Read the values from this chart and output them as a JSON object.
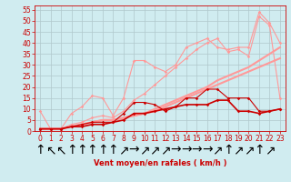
{
  "xlabel": "Vent moyen/en rafales ( km/h )",
  "background_color": "#d0ecf0",
  "grid_color": "#b0c8cc",
  "xlim": [
    -0.5,
    23.5
  ],
  "ylim": [
    0,
    57
  ],
  "yticks": [
    0,
    5,
    10,
    15,
    20,
    25,
    30,
    35,
    40,
    45,
    50,
    55
  ],
  "xticks": [
    0,
    1,
    2,
    3,
    4,
    5,
    6,
    7,
    8,
    9,
    10,
    11,
    12,
    13,
    14,
    15,
    16,
    17,
    18,
    19,
    20,
    21,
    22,
    23
  ],
  "series": [
    {
      "x": [
        0,
        1,
        2,
        3,
        4,
        5,
        6,
        7,
        8,
        9,
        10,
        11,
        12,
        13,
        14,
        15,
        16,
        17,
        18,
        19,
        20,
        21,
        22,
        23
      ],
      "y": [
        1,
        1,
        1,
        2,
        2,
        3,
        3,
        4,
        5,
        8,
        8,
        9,
        10,
        11,
        12,
        12,
        12,
        14,
        14,
        9,
        9,
        8,
        9,
        10
      ],
      "color": "#cc0000",
      "lw": 1.2,
      "marker": "D",
      "ms": 1.8,
      "zorder": 5
    },
    {
      "x": [
        0,
        1,
        2,
        3,
        4,
        5,
        6,
        7,
        8,
        9,
        10,
        11,
        12,
        13,
        14,
        15,
        16,
        17,
        18,
        19,
        20,
        21,
        22,
        23
      ],
      "y": [
        1,
        1,
        1,
        2,
        3,
        4,
        4,
        4,
        8,
        13,
        13,
        12,
        9,
        11,
        15,
        15,
        19,
        19,
        15,
        15,
        15,
        9,
        9,
        10
      ],
      "color": "#cc0000",
      "lw": 0.8,
      "marker": "D",
      "ms": 1.8,
      "zorder": 4
    },
    {
      "x": [
        0,
        1,
        2,
        3,
        4,
        5,
        6,
        7,
        8,
        9,
        10,
        11,
        12,
        13,
        14,
        15,
        16,
        17,
        18,
        19,
        20,
        21,
        22,
        23
      ],
      "y": [
        9,
        1,
        1,
        8,
        11,
        16,
        15,
        7,
        15,
        32,
        32,
        29,
        27,
        30,
        38,
        40,
        42,
        38,
        37,
        38,
        38,
        54,
        49,
        40
      ],
      "color": "#ff9999",
      "lw": 0.8,
      "marker": "D",
      "ms": 1.8,
      "zorder": 3
    },
    {
      "x": [
        0,
        1,
        2,
        3,
        4,
        5,
        6,
        7,
        8,
        9,
        10,
        11,
        12,
        13,
        14,
        15,
        16,
        17,
        18,
        19,
        20,
        21,
        22,
        23
      ],
      "y": [
        1,
        1,
        1,
        2,
        3,
        4,
        5,
        5,
        6,
        7,
        8,
        9,
        11,
        13,
        15,
        17,
        19,
        21,
        23,
        25,
        27,
        29,
        31,
        33
      ],
      "color": "#ff9999",
      "lw": 1.5,
      "marker": null,
      "ms": 0,
      "zorder": 2
    },
    {
      "x": [
        0,
        1,
        2,
        3,
        4,
        5,
        6,
        7,
        8,
        9,
        10,
        11,
        12,
        13,
        14,
        15,
        16,
        17,
        18,
        19,
        20,
        21,
        22,
        23
      ],
      "y": [
        1,
        1,
        1,
        3,
        4,
        6,
        7,
        6,
        9,
        14,
        17,
        21,
        25,
        29,
        33,
        37,
        40,
        42,
        36,
        37,
        34,
        52,
        48,
        15
      ],
      "color": "#ff9999",
      "lw": 0.8,
      "marker": "D",
      "ms": 1.8,
      "zorder": 3
    },
    {
      "x": [
        0,
        1,
        2,
        3,
        4,
        5,
        6,
        7,
        8,
        9,
        10,
        11,
        12,
        13,
        14,
        15,
        16,
        17,
        18,
        19,
        20,
        21,
        22,
        23
      ],
      "y": [
        1,
        1,
        1,
        2,
        3,
        4,
        5,
        5,
        6,
        7,
        8,
        10,
        12,
        14,
        16,
        18,
        20,
        23,
        25,
        27,
        29,
        32,
        35,
        38
      ],
      "color": "#ff9999",
      "lw": 1.5,
      "marker": null,
      "ms": 0,
      "zorder": 2
    }
  ],
  "wind_arrows": [
    "↑",
    "↖",
    "↖",
    "↑",
    "↑",
    "↑",
    "↑",
    "↑",
    "↗",
    "→",
    "↗",
    "↗",
    "↗",
    "→",
    "→",
    "→",
    "→",
    "↗",
    "↑",
    "↗",
    "↗",
    "↑",
    "↗"
  ],
  "label_fontsize": 6,
  "tick_fontsize": 5.5
}
